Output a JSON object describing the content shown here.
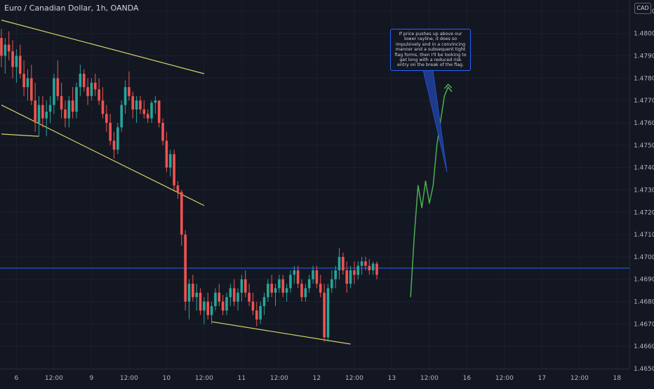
{
  "header": {
    "symbol_title": "Euro / Canadian Dollar, 1h, OANDA",
    "currency": "CAD"
  },
  "annotation": {
    "text": "If price pushes up above our lower rayline, it does so impulsively and in a convincing manner and a subsequent tight flag forms, then I'll be looking to get long with a reduced risk entry on the break of the flag."
  },
  "colors": {
    "background": "#131722",
    "up": "#26a69a",
    "down": "#ef5350",
    "trendline": "#d4d46a",
    "hline": "#2962ff",
    "projection": "#4caf50",
    "callout": "#1e3a8a"
  },
  "chart_data": {
    "type": "candlestick",
    "title": "Euro / Canadian Dollar, 1h, OANDA",
    "ylim": [
      1.465,
      1.4815
    ],
    "y_ticks": [
      "1.48100",
      "1.48000",
      "1.47900",
      "1.47800",
      "1.47700",
      "1.47600",
      "1.47500",
      "1.47400",
      "1.47300",
      "1.47200",
      "1.47100",
      "1.47000",
      "1.46900",
      "1.46800",
      "1.46700",
      "1.46600",
      "1.46500"
    ],
    "x_tick_labels": [
      "6",
      "12:00",
      "9",
      "12:00",
      "10",
      "12:00",
      "11",
      "12:00",
      "12",
      "12:00",
      "13",
      "12:00",
      "16",
      "12:00",
      "17",
      "12:00",
      "18"
    ],
    "x_tick_index": [
      4,
      14,
      24,
      34,
      44,
      54,
      64,
      74,
      84,
      94,
      104,
      114,
      124,
      134,
      144,
      154,
      164
    ],
    "candles": [
      [
        1.4798,
        1.4802,
        1.4785,
        1.479
      ],
      [
        1.479,
        1.4798,
        1.4782,
        1.4795
      ],
      [
        1.4795,
        1.4801,
        1.4788,
        1.4792
      ],
      [
        1.4792,
        1.4797,
        1.478,
        1.4785
      ],
      [
        1.4785,
        1.4793,
        1.4778,
        1.479
      ],
      [
        1.479,
        1.4795,
        1.478,
        1.4782
      ],
      [
        1.4782,
        1.4788,
        1.4772,
        1.4776
      ],
      [
        1.4776,
        1.4784,
        1.477,
        1.478
      ],
      [
        1.478,
        1.4786,
        1.4768,
        1.477
      ],
      [
        1.477,
        1.4778,
        1.4756,
        1.476
      ],
      [
        1.476,
        1.4772,
        1.4754,
        1.4768
      ],
      [
        1.4768,
        1.4772,
        1.4758,
        1.4762
      ],
      [
        1.4762,
        1.477,
        1.4754,
        1.4765
      ],
      [
        1.4765,
        1.4772,
        1.476,
        1.4768
      ],
      [
        1.4768,
        1.4782,
        1.4764,
        1.478
      ],
      [
        1.478,
        1.4788,
        1.477,
        1.4772
      ],
      [
        1.4772,
        1.4778,
        1.4762,
        1.4766
      ],
      [
        1.4766,
        1.477,
        1.4758,
        1.4762
      ],
      [
        1.4762,
        1.4772,
        1.4758,
        1.477
      ],
      [
        1.477,
        1.4776,
        1.4762,
        1.4765
      ],
      [
        1.4765,
        1.4778,
        1.4762,
        1.4776
      ],
      [
        1.4776,
        1.4786,
        1.4772,
        1.4782
      ],
      [
        1.4782,
        1.4784,
        1.4774,
        1.4776
      ],
      [
        1.4776,
        1.478,
        1.4768,
        1.4772
      ],
      [
        1.4772,
        1.478,
        1.477,
        1.4778
      ],
      [
        1.4778,
        1.4782,
        1.4772,
        1.4775
      ],
      [
        1.4775,
        1.478,
        1.4768,
        1.477
      ],
      [
        1.477,
        1.4776,
        1.4762,
        1.4764
      ],
      [
        1.4764,
        1.4768,
        1.4756,
        1.476
      ],
      [
        1.476,
        1.4764,
        1.475,
        1.4752
      ],
      [
        1.4752,
        1.4756,
        1.4744,
        1.4748
      ],
      [
        1.4748,
        1.476,
        1.4746,
        1.4758
      ],
      [
        1.4758,
        1.477,
        1.4756,
        1.4768
      ],
      [
        1.4768,
        1.4779,
        1.4764,
        1.4776
      ],
      [
        1.4776,
        1.4783,
        1.477,
        1.4772
      ],
      [
        1.4772,
        1.4774,
        1.4762,
        1.4766
      ],
      [
        1.4766,
        1.4772,
        1.476,
        1.477
      ],
      [
        1.477,
        1.4772,
        1.4764,
        1.4766
      ],
      [
        1.4766,
        1.477,
        1.4762,
        1.4764
      ],
      [
        1.4764,
        1.4766,
        1.476,
        1.4762
      ],
      [
        1.4762,
        1.477,
        1.476,
        1.4769
      ],
      [
        1.4769,
        1.4772,
        1.4764,
        1.477
      ],
      [
        1.477,
        1.477,
        1.4758,
        1.476
      ],
      [
        1.476,
        1.4762,
        1.475,
        1.4752
      ],
      [
        1.4752,
        1.4756,
        1.4738,
        1.474
      ],
      [
        1.474,
        1.4748,
        1.4736,
        1.4746
      ],
      [
        1.4746,
        1.4748,
        1.473,
        1.4732
      ],
      [
        1.4732,
        1.4734,
        1.4726,
        1.4729
      ],
      [
        1.4729,
        1.473,
        1.4705,
        1.471
      ],
      [
        1.471,
        1.4712,
        1.4676,
        1.468
      ],
      [
        1.468,
        1.469,
        1.4672,
        1.4688
      ],
      [
        1.4688,
        1.4692,
        1.468,
        1.4682
      ],
      [
        1.4682,
        1.4688,
        1.4676,
        1.4684
      ],
      [
        1.4684,
        1.4686,
        1.4674,
        1.4676
      ],
      [
        1.4676,
        1.4682,
        1.467,
        1.468
      ],
      [
        1.468,
        1.4684,
        1.4672,
        1.4674
      ],
      [
        1.4674,
        1.468,
        1.467,
        1.4678
      ],
      [
        1.4678,
        1.4686,
        1.4676,
        1.4684
      ],
      [
        1.4684,
        1.4688,
        1.4678,
        1.468
      ],
      [
        1.468,
        1.4683,
        1.4674,
        1.4676
      ],
      [
        1.4676,
        1.4684,
        1.4674,
        1.4682
      ],
      [
        1.4682,
        1.4688,
        1.4678,
        1.4686
      ],
      [
        1.4686,
        1.469,
        1.4678,
        1.468
      ],
      [
        1.468,
        1.4686,
        1.4676,
        1.4684
      ],
      [
        1.4684,
        1.4692,
        1.468,
        1.469
      ],
      [
        1.469,
        1.4694,
        1.4682,
        1.4684
      ],
      [
        1.4684,
        1.4688,
        1.4678,
        1.468
      ],
      [
        1.468,
        1.4684,
        1.4674,
        1.4676
      ],
      [
        1.4676,
        1.468,
        1.4669,
        1.4672
      ],
      [
        1.4672,
        1.468,
        1.467,
        1.4678
      ],
      [
        1.4678,
        1.4684,
        1.4674,
        1.4682
      ],
      [
        1.4682,
        1.469,
        1.468,
        1.4688
      ],
      [
        1.4688,
        1.4692,
        1.4682,
        1.4684
      ],
      [
        1.4684,
        1.4688,
        1.4678,
        1.4686
      ],
      [
        1.4686,
        1.4692,
        1.4684,
        1.469
      ],
      [
        1.469,
        1.4692,
        1.4682,
        1.4684
      ],
      [
        1.4684,
        1.4688,
        1.468,
        1.4686
      ],
      [
        1.4686,
        1.4694,
        1.4684,
        1.4692
      ],
      [
        1.4692,
        1.4696,
        1.4688,
        1.4694
      ],
      [
        1.4694,
        1.4696,
        1.4686,
        1.4688
      ],
      [
        1.4688,
        1.469,
        1.468,
        1.4682
      ],
      [
        1.4682,
        1.4688,
        1.468,
        1.4686
      ],
      [
        1.4686,
        1.4692,
        1.4684,
        1.469
      ],
      [
        1.469,
        1.4696,
        1.4688,
        1.4694
      ],
      [
        1.4694,
        1.4696,
        1.4686,
        1.4688
      ],
      [
        1.4688,
        1.4692,
        1.4682,
        1.4684
      ],
      [
        1.4684,
        1.4688,
        1.4662,
        1.4664
      ],
      [
        1.4664,
        1.4688,
        1.4662,
        1.4686
      ],
      [
        1.4686,
        1.4694,
        1.4684,
        1.469
      ],
      [
        1.469,
        1.4696,
        1.4686,
        1.4694
      ],
      [
        1.4694,
        1.4704,
        1.469,
        1.47
      ],
      [
        1.47,
        1.4702,
        1.4692,
        1.4694
      ],
      [
        1.4694,
        1.4698,
        1.4684,
        1.4688
      ],
      [
        1.4688,
        1.4696,
        1.4686,
        1.4694
      ],
      [
        1.4694,
        1.4698,
        1.4688,
        1.4692
      ],
      [
        1.4692,
        1.4698,
        1.469,
        1.4696
      ],
      [
        1.4696,
        1.47,
        1.4692,
        1.4698
      ],
      [
        1.4698,
        1.47,
        1.4694,
        1.4696
      ],
      [
        1.4696,
        1.4699,
        1.4692,
        1.4694
      ],
      [
        1.4694,
        1.4698,
        1.4692,
        1.4697
      ],
      [
        1.4697,
        1.4698,
        1.469,
        1.4692
      ]
    ],
    "horizontal_line": 1.4695,
    "trendlines": [
      {
        "x": [
          0,
          54
        ],
        "y": [
          1.4806,
          1.4782
        ]
      },
      {
        "x": [
          0,
          54
        ],
        "y": [
          1.4768,
          1.4723
        ]
      },
      {
        "x": [
          0,
          10
        ],
        "y": [
          1.4755,
          1.4754
        ]
      },
      {
        "x": [
          56,
          93
        ],
        "y": [
          1.4671,
          1.4661
        ]
      }
    ],
    "projection_path": {
      "x": [
        109,
        110,
        111,
        112,
        113,
        114,
        115,
        116,
        118,
        119,
        120
      ],
      "y": [
        1.4682,
        1.471,
        1.4732,
        1.4722,
        1.4734,
        1.4724,
        1.4732,
        1.475,
        1.4772,
        1.4776,
        1.4774
      ]
    }
  }
}
